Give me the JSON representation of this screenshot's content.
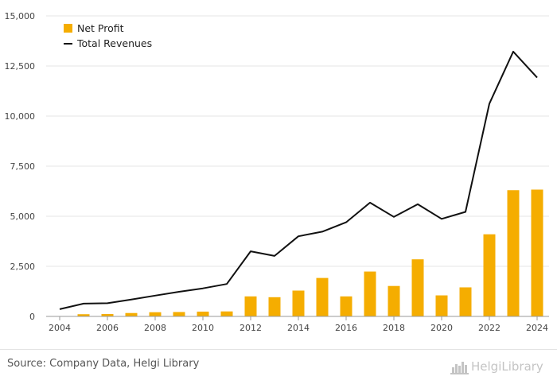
{
  "chart_data": {
    "type": "bar",
    "x": [
      2004,
      2005,
      2006,
      2007,
      2008,
      2009,
      2010,
      2011,
      2012,
      2013,
      2014,
      2015,
      2016,
      2017,
      2018,
      2019,
      2020,
      2021,
      2022,
      2023,
      2024
    ],
    "x_tick_labels": [
      "2004",
      "2006",
      "2008",
      "2010",
      "2012",
      "2014",
      "2016",
      "2018",
      "2020",
      "2022",
      "2024"
    ],
    "y_tick_labels": [
      "0",
      "2,500",
      "5,000",
      "7,500",
      "10,000",
      "12,500",
      "15,000"
    ],
    "ylim": [
      0,
      15000
    ],
    "grid": "horizontal",
    "legend_position": "top-left",
    "series": [
      {
        "name": "Net Profit",
        "kind": "bar",
        "color": "#f5ad00",
        "values": [
          null,
          110,
          120,
          170,
          210,
          220,
          240,
          250,
          1000,
          960,
          1290,
          1920,
          1000,
          2240,
          1520,
          2850,
          1050,
          1450,
          4100,
          6300,
          6330
        ]
      },
      {
        "name": "Total Revenues",
        "kind": "line",
        "color": "#111111",
        "values": [
          360,
          640,
          660,
          840,
          1040,
          1230,
          1400,
          1620,
          3250,
          3020,
          4000,
          4230,
          4700,
          5680,
          4970,
          5600,
          4870,
          5220,
          10620,
          13220,
          11920
        ]
      }
    ]
  },
  "footer": {
    "source": "Source: Company Data, Helgi Library",
    "brand": "HelgiLibrary"
  }
}
